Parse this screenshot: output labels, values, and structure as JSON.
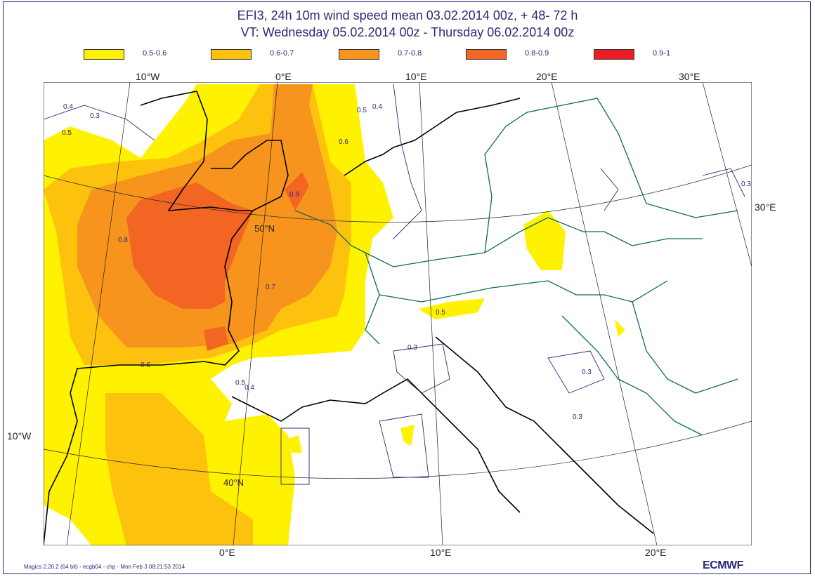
{
  "title": {
    "line1": "EFI3, 24h 10m wind speed mean 03.02.2014 00z, + 48- 72 h",
    "line2": "VT: Wednesday 05.02.2014 00z - Thursday  06.02.2014 00z"
  },
  "legend": [
    {
      "label": "0.5-0.6",
      "color": "#fff200"
    },
    {
      "label": "0.6-0.7",
      "color": "#fdc20e"
    },
    {
      "label": "0.7-0.8",
      "color": "#f7941d"
    },
    {
      "label": "0.8-0.9",
      "color": "#f26522"
    },
    {
      "label": "0.9-1",
      "color": "#ed1c24"
    }
  ],
  "graticule": {
    "top": [
      "10°W",
      "0°E",
      "10°E",
      "20°E",
      "30°E"
    ],
    "bottom": [
      "0°E",
      "10°E",
      "20°E"
    ],
    "left": [
      "10°W"
    ],
    "right": [
      "30°E"
    ],
    "lat": [
      "50°N",
      "40°N"
    ]
  },
  "contour_labels": [
    "0.4",
    "0.3",
    "0.5",
    "0.5",
    "0.4",
    "0.6",
    "0.8",
    "0.7",
    "0.6",
    "0.9",
    "0.5",
    "0.4",
    "0.3",
    "0.3",
    "0.3",
    "0.5",
    "0.3"
  ],
  "footer": "Magics 2.20.2 (64 bit) - ecgb04 - chp - Mon Feb  3 08:21:53 2014",
  "logo": "ECMWF"
}
